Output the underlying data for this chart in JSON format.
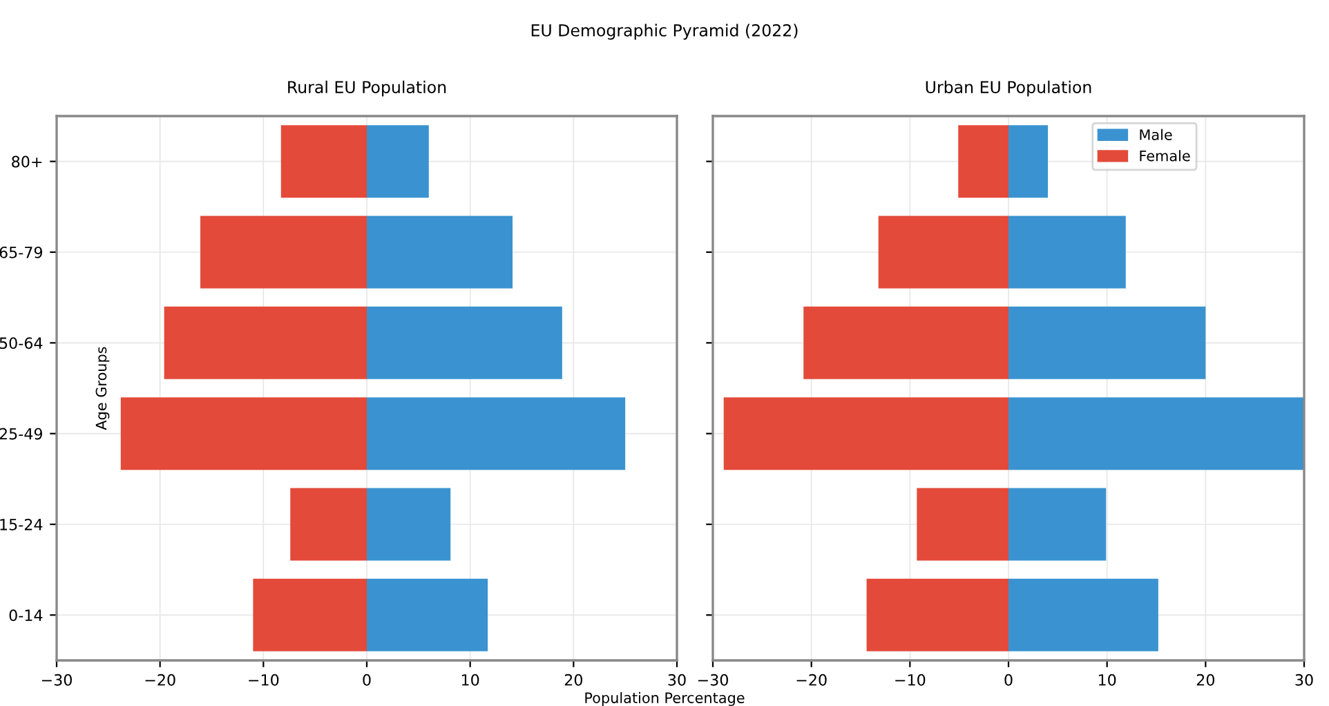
{
  "chart_data": [
    {
      "type": "bar",
      "orientation": "horizontal",
      "stacked": true,
      "title": "Rural EU Population",
      "xlabel": "Population Percentage",
      "ylabel": "Age Groups",
      "annotations": [
        "EU Demographic Pyramid (2022)"
      ],
      "categories": [
        "80+",
        "65-79",
        "50-64",
        "25-49",
        "15-24",
        "0-14"
      ],
      "series": [
        {
          "color": "#3a93d0",
          "values": [
            6.0,
            14.1,
            18.9,
            25.0,
            8.1,
            11.7
          ]
        },
        {
          "color": "#e34a3a",
          "values": [
            -8.3,
            -16.1,
            -19.6,
            -23.8,
            -7.4,
            -11.0
          ]
        }
      ],
      "xlim": [
        -30,
        30
      ],
      "xticks": [
        {
          "value": -30,
          "label": "−30"
        },
        {
          "value": -20,
          "label": "−20"
        },
        {
          "value": -10,
          "label": "−10"
        },
        0,
        10,
        20,
        30
      ],
      "grid": true,
      "legend": false
    },
    {
      "type": "bar",
      "orientation": "horizontal",
      "stacked": true,
      "title": "Urban EU Population",
      "categories": [
        null,
        null,
        null,
        null,
        null,
        null
      ],
      "series": [
        {
          "name": "Male",
          "color": "#3a93d0",
          "values": [
            4.0,
            11.9,
            20.0,
            30.0,
            9.9,
            15.2
          ]
        },
        {
          "name": "Female",
          "color": "#e34a3a",
          "values": [
            -5.1,
            -13.2,
            -20.8,
            -28.9,
            -9.3,
            -14.4
          ]
        }
      ],
      "xlim": [
        -30,
        30
      ],
      "xticks": [
        {
          "value": -30,
          "label": "−30"
        },
        {
          "value": -20,
          "label": "−20"
        },
        {
          "value": -10,
          "label": "−10"
        },
        0,
        10,
        20,
        30
      ],
      "grid": true,
      "legend": "top right",
      "tick_labels": "x"
    }
  ]
}
